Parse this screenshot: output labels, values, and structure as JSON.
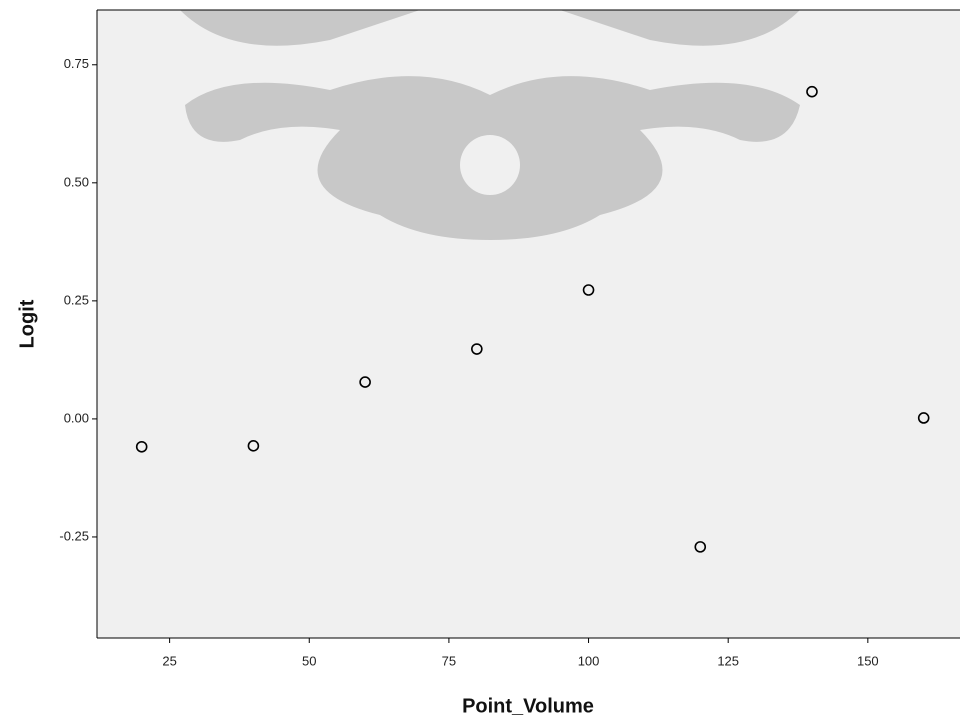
{
  "chart_data": {
    "type": "scatter",
    "x_label": "Point_Volume",
    "y_label": "Logit",
    "x": [
      20,
      40,
      60,
      80,
      100,
      120,
      140,
      160
    ],
    "series": [
      {
        "color": "#000000",
        "values": [
          -0.059,
          -0.057,
          0.078,
          0.148,
          0.273,
          -0.271,
          0.693,
          0.002
        ]
      }
    ],
    "xlim": [
      12,
      166.5
    ],
    "ylim": [
      -0.464,
      0.866
    ],
    "xticks": [
      25,
      50,
      75,
      100,
      125,
      150
    ],
    "yticks": [
      {
        "value": -0.25,
        "label": "-0.25"
      },
      {
        "value": 0,
        "label": "0.00"
      },
      {
        "value": 0.25,
        "label": "0.25"
      },
      {
        "value": 0.5,
        "label": "0.50"
      },
      {
        "value": 0.75,
        "label": "0.75"
      }
    ],
    "grid": false
  }
}
